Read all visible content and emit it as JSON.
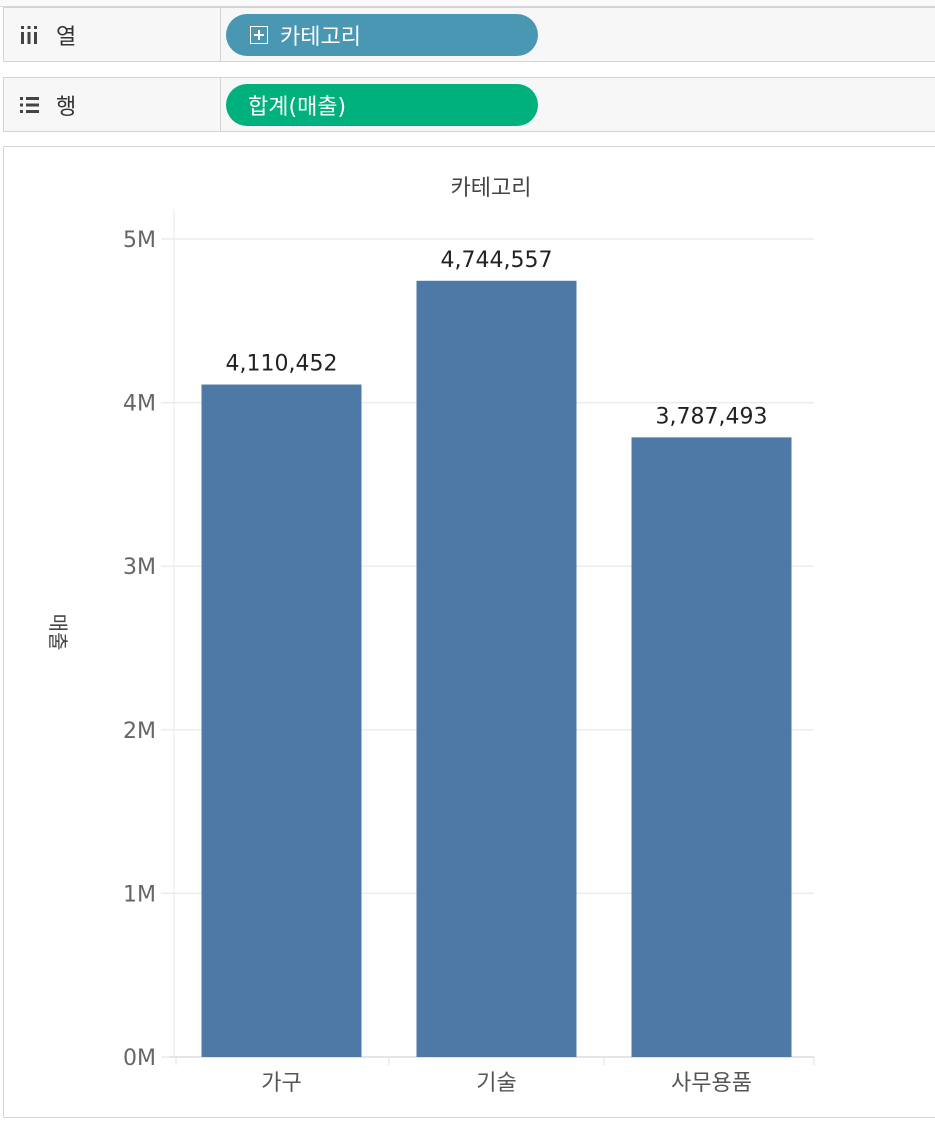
{
  "shelves": {
    "columns": {
      "label": "열",
      "icon": "columns-icon",
      "pill": "카테고리",
      "pill_icon": "plus-box-icon",
      "pill_color": "#4a97b3"
    },
    "rows": {
      "label": "행",
      "icon": "rows-list-icon",
      "pill": "합계(매출)",
      "pill_color": "#00b17d"
    }
  },
  "chart_data": {
    "type": "bar",
    "title": "카테고리",
    "ylabel": "매출",
    "xlabel": "",
    "categories": [
      "가구",
      "기술",
      "사무용품"
    ],
    "values": [
      4110452,
      4744557,
      3787493
    ],
    "value_labels": [
      "4,110,452",
      "4,744,557",
      "3,787,493"
    ],
    "yticks": [
      0,
      1000000,
      2000000,
      3000000,
      4000000,
      5000000
    ],
    "ytick_labels": [
      "0M",
      "1M",
      "2M",
      "3M",
      "4M",
      "5M"
    ],
    "ylim": [
      0,
      5000000
    ],
    "bar_color": "#4e79a7",
    "grid": true
  }
}
